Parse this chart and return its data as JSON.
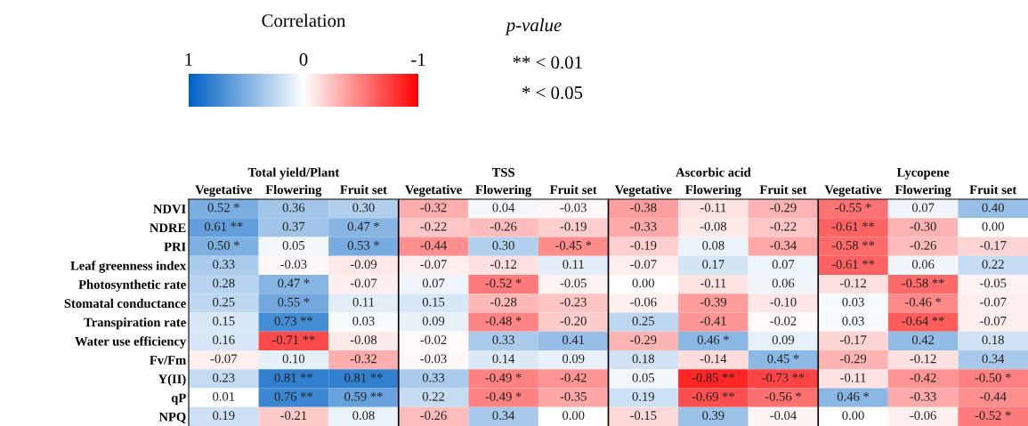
{
  "chart_data": {
    "type": "heatmap",
    "clabel": "Correlation",
    "clim": [
      1,
      -1
    ],
    "cticks": [
      1,
      0,
      -1
    ],
    "categories": [
      "Vegetative",
      "Flowering",
      "Fruit set",
      "Vegetative",
      "Flowering",
      "Fruit set",
      "Vegetative",
      "Flowering",
      "Fruit set",
      "Vegetative",
      "Flowering",
      "Fruit set"
    ],
    "y_categories": [
      "NDVI",
      "NDRE",
      "PRI",
      "Leaf greenness index",
      "Photosynthetic rate",
      "Stomatal conductance",
      "Transpiration rate",
      "Water use efficiency",
      "Fv/Fm",
      "Y(II)",
      "qP",
      "NPQ"
    ],
    "cells": [
      [
        0.52,
        0.36,
        0.3,
        -0.32,
        0.04,
        -0.03,
        -0.38,
        -0.11,
        -0.29,
        -0.55,
        0.07,
        0.4
      ],
      [
        0.61,
        0.37,
        0.47,
        -0.22,
        -0.26,
        -0.19,
        -0.33,
        -0.08,
        -0.22,
        -0.61,
        -0.3,
        0.0
      ],
      [
        0.5,
        0.05,
        0.53,
        -0.44,
        0.3,
        -0.45,
        -0.19,
        0.08,
        -0.34,
        -0.58,
        -0.26,
        -0.17
      ],
      [
        0.33,
        -0.03,
        -0.09,
        -0.07,
        -0.12,
        0.11,
        -0.07,
        0.17,
        0.07,
        -0.61,
        0.06,
        0.22
      ],
      [
        0.28,
        0.47,
        -0.07,
        0.07,
        -0.52,
        -0.05,
        0.0,
        -0.11,
        0.06,
        -0.12,
        -0.58,
        -0.05
      ],
      [
        0.25,
        0.55,
        0.11,
        0.15,
        -0.28,
        -0.23,
        -0.06,
        -0.39,
        -0.1,
        0.03,
        -0.46,
        -0.07
      ],
      [
        0.15,
        0.73,
        0.03,
        0.09,
        -0.48,
        -0.2,
        0.25,
        -0.41,
        -0.02,
        0.03,
        -0.64,
        -0.07
      ],
      [
        0.16,
        -0.71,
        -0.08,
        -0.02,
        0.33,
        0.41,
        -0.29,
        0.46,
        0.09,
        -0.17,
        0.42,
        0.18
      ],
      [
        -0.07,
        0.1,
        -0.32,
        -0.03,
        0.14,
        0.09,
        0.18,
        -0.14,
        0.45,
        -0.29,
        -0.12,
        0.34
      ],
      [
        0.23,
        0.81,
        0.81,
        0.33,
        -0.49,
        -0.42,
        0.05,
        -0.85,
        -0.73,
        -0.11,
        -0.42,
        -0.5
      ],
      [
        0.01,
        0.76,
        0.59,
        0.22,
        -0.49,
        -0.35,
        0.19,
        -0.69,
        -0.56,
        0.46,
        -0.33,
        -0.44
      ],
      [
        0.19,
        -0.21,
        0.08,
        -0.26,
        0.34,
        0.0,
        -0.15,
        0.39,
        -0.04,
        0.0,
        -0.06,
        -0.52
      ]
    ],
    "cell_labels": [
      [
        "0.52 *",
        "0.36",
        "0.30",
        "-0.32",
        "0.04",
        "-0.03",
        "-0.38",
        "-0.11",
        "-0.29",
        "-0.55 *",
        "0.07",
        "0.40"
      ],
      [
        "0.61 **",
        "0.37",
        "0.47 *",
        "-0.22",
        "-0.26",
        "-0.19",
        "-0.33",
        "-0.08",
        "-0.22",
        "-0.61 **",
        "-0.30",
        "0.00"
      ],
      [
        "0.50 *",
        "0.05",
        "0.53 *",
        "-0.44",
        "0.30",
        "-0.45 *",
        "-0.19",
        "0.08",
        "-0.34",
        "-0.58 **",
        "-0.26",
        "-0.17"
      ],
      [
        "0.33",
        "-0.03",
        "-0.09",
        "-0.07",
        "-0.12",
        "0.11",
        "-0.07",
        "0.17",
        "0.07",
        "-0.61 **",
        "0.06",
        "0.22"
      ],
      [
        "0.28",
        "0.47 *",
        "-0.07",
        "0.07",
        "-0.52 *",
        "-0.05",
        "0.00",
        "-0.11",
        "0.06",
        "-0.12",
        "-0.58 **",
        "-0.05"
      ],
      [
        "0.25",
        "0.55 *",
        "0.11",
        "0.15",
        "-0.28",
        "-0.23",
        "-0.06",
        "-0.39",
        "-0.10",
        "0.03",
        "-0.46 *",
        "-0.07"
      ],
      [
        "0.15",
        "0.73 **",
        "0.03",
        "0.09",
        "-0.48 *",
        "-0.20",
        "0.25",
        "-0.41",
        "-0.02",
        "0.03",
        "-0.64 **",
        "-0.07"
      ],
      [
        "0.16",
        "-0.71 **",
        "-0.08",
        "-0.02",
        "0.33",
        "0.41",
        "-0.29",
        "0.46 *",
        "0.09",
        "-0.17",
        "0.42",
        "0.18"
      ],
      [
        "-0.07",
        "0.10",
        "-0.32",
        "-0.03",
        "0.14",
        "0.09",
        "0.18",
        "-0.14",
        "0.45 *",
        "-0.29",
        "-0.12",
        "0.34"
      ],
      [
        "0.23",
        "0.81 **",
        "0.81 **",
        "0.33",
        "-0.49 *",
        "-0.42",
        "0.05",
        "-0.85 **",
        "-0.73 **",
        "-0.11",
        "-0.42",
        "-0.50 *"
      ],
      [
        "0.01",
        "0.76 **",
        "0.59 **",
        "0.22",
        "-0.49 *",
        "-0.35",
        "0.19",
        "-0.69 **",
        "-0.56 *",
        "0.46 *",
        "-0.33",
        "-0.44"
      ],
      [
        "0.19",
        "-0.21",
        "0.08",
        "-0.26",
        "0.34",
        "0.00",
        "-0.15",
        "0.39",
        "-0.04",
        "0.00",
        "-0.06",
        "-0.52 *"
      ]
    ],
    "annotations": [
      "Total yield/Plant",
      "TSS",
      "Ascorbic acid",
      "Lycopene",
      "p-value",
      "** < 0.01",
      "* < 0.05"
    ]
  }
}
